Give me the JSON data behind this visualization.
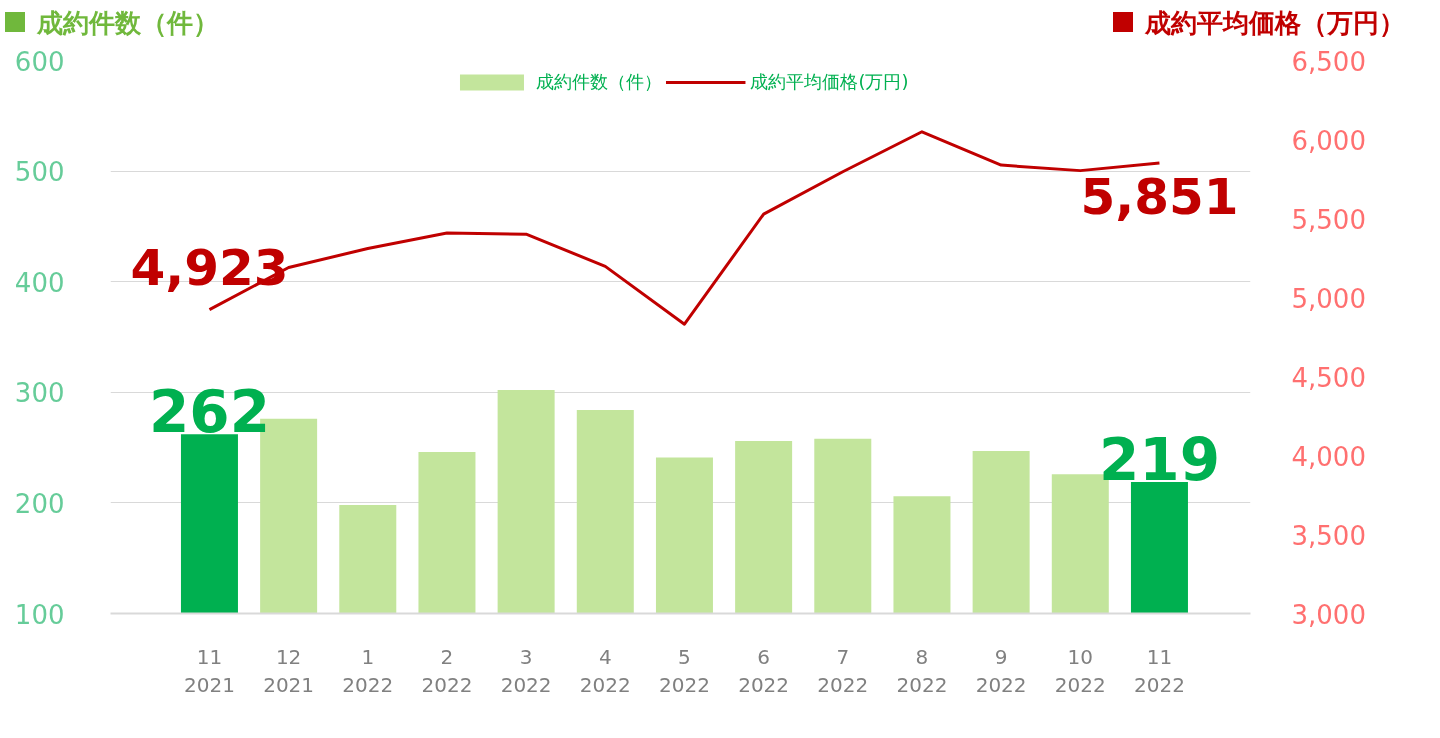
{
  "chart_data": {
    "type": "bar",
    "ylabel": "成約件数（件）",
    "y2label": "成約平均価格（万円）",
    "categories": [
      "11\n2021",
      "12\n2021",
      "1\n2022",
      "2\n2022",
      "3\n2022",
      "4\n2022",
      "5\n2022",
      "6\n2022",
      "7\n2022",
      "8\n2022",
      "9\n2022",
      "10\n2022",
      "11\n2022"
    ],
    "series": [
      {
        "name": "成約件数（件）",
        "colors": [
          "#00b050",
          "#c3e59c",
          "#c3e59c",
          "#c3e59c",
          "#c3e59c",
          "#c3e59c",
          "#c3e59c",
          "#c3e59c",
          "#c3e59c",
          "#c3e59c",
          "#c3e59c",
          "#c3e59c",
          "#00b050"
        ],
        "values": [
          262,
          276,
          198,
          246,
          302,
          284,
          241,
          256,
          258,
          206,
          247,
          226,
          219
        ],
        "value_labels": [
          "262",
          null,
          null,
          null,
          null,
          null,
          null,
          null,
          null,
          null,
          null,
          null,
          "219"
        ]
      },
      {
        "name": "成約平均価格(万円)",
        "type": "line",
        "axis": "y2",
        "color": "#c00000",
        "values": [
          4923,
          5190,
          5310,
          5408,
          5401,
          5197,
          4831,
          5528,
          5796,
          6049,
          5838,
          5803,
          5851
        ],
        "value_labels": [
          "4,923",
          null,
          null,
          null,
          null,
          null,
          null,
          null,
          null,
          null,
          null,
          null,
          "5,851"
        ]
      }
    ],
    "ylim": [
      100,
      600
    ],
    "yticks": [
      100,
      200,
      300,
      400,
      500,
      600
    ],
    "y2lim": [
      3000,
      6500
    ],
    "y2ticks": [
      {
        "value": 3000,
        "label": "3,000"
      },
      {
        "value": 3500,
        "label": "3,500"
      },
      {
        "value": 4000,
        "label": "4,000"
      },
      {
        "value": 4500,
        "label": "4,500"
      },
      {
        "value": 5000,
        "label": "5,000"
      },
      {
        "value": 5500,
        "label": "5,500"
      },
      {
        "value": 6000,
        "label": "6,000"
      },
      {
        "value": 6500,
        "label": "6,500"
      }
    ],
    "grid": "y",
    "legend": "top"
  }
}
